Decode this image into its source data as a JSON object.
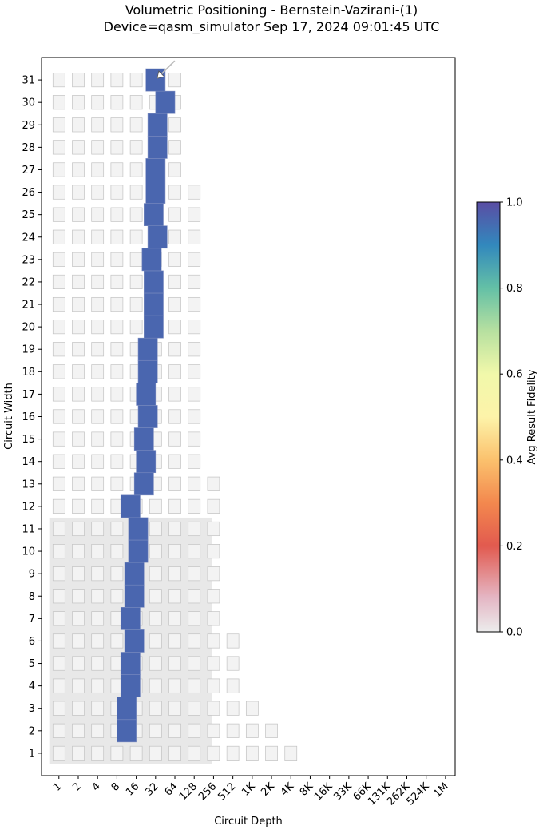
{
  "chart_data": {
    "type": "heatmap",
    "title": "Volumetric Positioning - Bernstein-Vazirani-(1)",
    "subtitle": "Device=qasm_simulator  Sep 17, 2024 09:01:45 UTC",
    "xlabel": "Circuit Depth",
    "ylabel": "Circuit Width",
    "x_tick_labels": [
      "1",
      "2",
      "4",
      "8",
      "16",
      "32",
      "64",
      "128",
      "256",
      "512",
      "1K",
      "2K",
      "4K",
      "8K",
      "16K",
      "33K",
      "66K",
      "131K",
      "262K",
      "524K",
      "1M"
    ],
    "y_tick_labels": [
      "1",
      "2",
      "3",
      "4",
      "5",
      "6",
      "7",
      "8",
      "9",
      "10",
      "11",
      "12",
      "13",
      "14",
      "15",
      "16",
      "17",
      "18",
      "19",
      "20",
      "21",
      "22",
      "23",
      "24",
      "25",
      "26",
      "27",
      "28",
      "29",
      "30",
      "31"
    ],
    "xlim_log2": [
      -0.9,
      20.5
    ],
    "ylim": [
      0,
      32
    ],
    "grid": false,
    "colorbar": {
      "label": "Avg Result Fidelity",
      "ticks": [
        "0.0",
        "0.2",
        "0.4",
        "0.6",
        "0.8",
        "1.0"
      ],
      "range": [
        0.0,
        1.0
      ]
    },
    "quantum_volume_region": {
      "max_width": 11,
      "max_depth_log2": 7.9,
      "color": "#e8e8e8"
    },
    "volumetric_background": {
      "note_values": "max depth index (log2) per width row of faint background squares",
      "rows": [
        {
          "widths": [
            1,
            1
          ],
          "max_depth_log2": 12
        },
        {
          "widths": [
            2,
            2
          ],
          "max_depth_log2": 11
        },
        {
          "widths": [
            3,
            3
          ],
          "max_depth_log2": 10
        },
        {
          "widths": [
            4,
            6
          ],
          "max_depth_log2": 9
        },
        {
          "widths": [
            7,
            13
          ],
          "max_depth_log2": 8
        },
        {
          "widths": [
            14,
            26
          ],
          "max_depth_log2": 7
        },
        {
          "widths": [
            27,
            31
          ],
          "max_depth_log2": 6
        }
      ]
    },
    "series": [
      {
        "fidelity": 1.0,
        "color": "#4a66af",
        "points": [
          {
            "width": 2,
            "depth_log2": 3.5
          },
          {
            "width": 3,
            "depth_log2": 3.5
          },
          {
            "width": 4,
            "depth_log2": 3.7
          },
          {
            "width": 5,
            "depth_log2": 3.7
          },
          {
            "width": 6,
            "depth_log2": 3.9
          },
          {
            "width": 7,
            "depth_log2": 3.7
          },
          {
            "width": 8,
            "depth_log2": 3.9
          },
          {
            "width": 9,
            "depth_log2": 3.9
          },
          {
            "width": 10,
            "depth_log2": 4.1
          },
          {
            "width": 11,
            "depth_log2": 4.1
          },
          {
            "width": 12,
            "depth_log2": 3.7
          },
          {
            "width": 13,
            "depth_log2": 4.4
          },
          {
            "width": 14,
            "depth_log2": 4.5
          },
          {
            "width": 15,
            "depth_log2": 4.4
          },
          {
            "width": 16,
            "depth_log2": 4.6
          },
          {
            "width": 17,
            "depth_log2": 4.5
          },
          {
            "width": 18,
            "depth_log2": 4.6
          },
          {
            "width": 19,
            "depth_log2": 4.6
          },
          {
            "width": 20,
            "depth_log2": 4.9
          },
          {
            "width": 21,
            "depth_log2": 4.9
          },
          {
            "width": 22,
            "depth_log2": 4.9
          },
          {
            "width": 23,
            "depth_log2": 4.8
          },
          {
            "width": 24,
            "depth_log2": 5.1
          },
          {
            "width": 25,
            "depth_log2": 4.9
          },
          {
            "width": 26,
            "depth_log2": 5.0
          },
          {
            "width": 27,
            "depth_log2": 5.0
          },
          {
            "width": 28,
            "depth_log2": 5.1
          },
          {
            "width": 29,
            "depth_log2": 5.1
          },
          {
            "width": 30,
            "depth_log2": 5.5
          },
          {
            "width": 31,
            "depth_log2": 5.0
          }
        ]
      }
    ]
  }
}
